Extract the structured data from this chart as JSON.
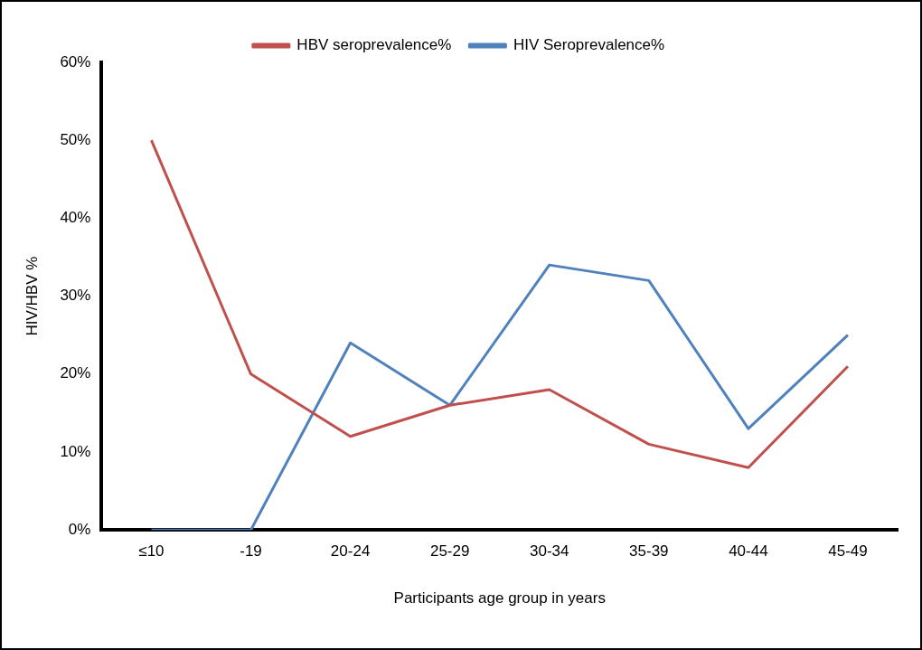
{
  "chart_data": {
    "type": "line",
    "xlabel": "Participants age group in years",
    "ylabel": "HIV/HBV %",
    "categories": [
      "≤10",
      "-19",
      "20-24",
      "25-29",
      "30-34",
      "35-39",
      "40-44",
      "45-49"
    ],
    "series": [
      {
        "name": "HBV seroprevalence%",
        "color": "#c0504d",
        "values": [
          50,
          20,
          12,
          16,
          18,
          11,
          8,
          21
        ]
      },
      {
        "name": "HIV Seroprevalence%",
        "color": "#4f81bd",
        "values": [
          0,
          0,
          24,
          16,
          34,
          32,
          13,
          25
        ]
      }
    ],
    "ylim": [
      0,
      60
    ],
    "yticks": [
      {
        "value": 0,
        "label": "0%"
      },
      {
        "value": 10,
        "label": "10%"
      },
      {
        "value": 20,
        "label": "20%"
      },
      {
        "value": 30,
        "label": "30%"
      },
      {
        "value": 40,
        "label": "40%"
      },
      {
        "value": 50,
        "label": "50%"
      },
      {
        "value": 60,
        "label": "60%"
      }
    ],
    "grid": false,
    "legend": "top",
    "marker": "none",
    "line_style": "solid"
  }
}
